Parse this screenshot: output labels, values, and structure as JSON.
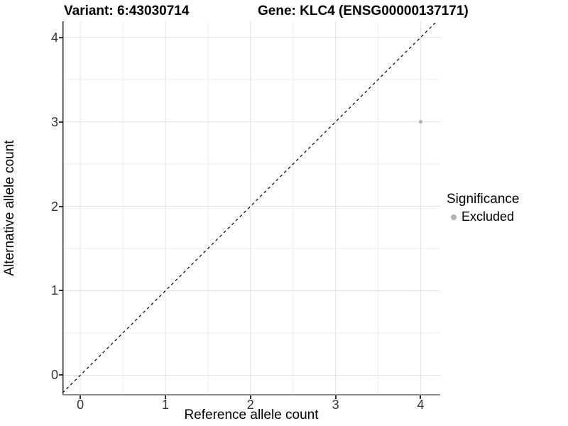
{
  "title": {
    "variant": "Variant: 6:43030714",
    "gene": "Gene: KLC4 (ENSG00000137171)"
  },
  "chart_data": {
    "type": "scatter",
    "title": "Variant: 6:43030714   Gene: KLC4 (ENSG00000137171)",
    "xlabel": "Reference allele count",
    "ylabel": "Alternative allele count",
    "xlim": [
      -0.21,
      4.23
    ],
    "ylim": [
      -0.24,
      4.19
    ],
    "x_ticks": [
      0,
      1,
      2,
      3,
      4
    ],
    "y_ticks": [
      0,
      1,
      2,
      3,
      4
    ],
    "x_minor_ticks": [
      0.5,
      1.5,
      2.5,
      3.5
    ],
    "y_minor_ticks": [
      0.5,
      1.5,
      2.5,
      3.5
    ],
    "grid": true,
    "reference_line": {
      "equation": "y = x",
      "style": "dashed",
      "color": "#000000"
    },
    "series": [
      {
        "name": "Excluded",
        "color": "#b3b3b3",
        "points": [
          {
            "x": 4,
            "y": 3
          }
        ]
      }
    ],
    "legend": {
      "title": "Significance",
      "position": "right",
      "entries": [
        {
          "label": "Excluded",
          "color": "#b3b3b3"
        }
      ]
    }
  },
  "colors": {
    "background": "#ffffff",
    "grid_major": "#e2e2e2",
    "grid_minor": "#eeeeee",
    "axis_line_left": "#262626",
    "axis_line_bottom": "#8c8c8c",
    "tick_mark": "#333333",
    "tick_text": "#333333",
    "point": "#b3b3b3"
  }
}
